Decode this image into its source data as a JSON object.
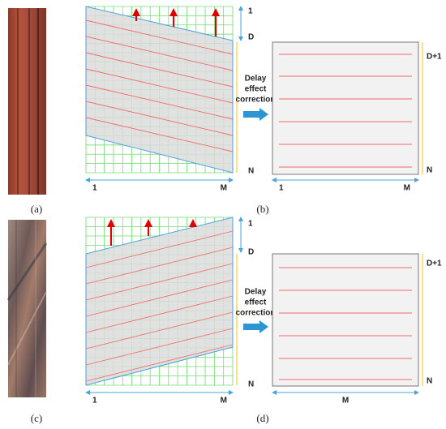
{
  "panels": [
    {
      "image_label": "(a)",
      "diagram_label": "(b)",
      "grid": {
        "row_labels": [
          "1",
          "D",
          "N"
        ],
        "col_labels": [
          "1",
          "M"
        ]
      },
      "arrow_text": [
        "Delay",
        "effect",
        "correction"
      ],
      "output": {
        "row_labels": [
          "D+1",
          "N"
        ],
        "col_labels": [
          "1",
          "M"
        ]
      }
    },
    {
      "image_label": "(c)",
      "diagram_label": "(d)",
      "grid": {
        "row_labels": [
          "1",
          "D",
          "N"
        ],
        "col_labels": [
          "1",
          "M"
        ]
      },
      "arrow_text": [
        "Delay",
        "effect",
        "correction"
      ],
      "output": {
        "row_labels": [
          "D+1",
          "N"
        ],
        "col_labels": [
          "M"
        ]
      }
    }
  ]
}
